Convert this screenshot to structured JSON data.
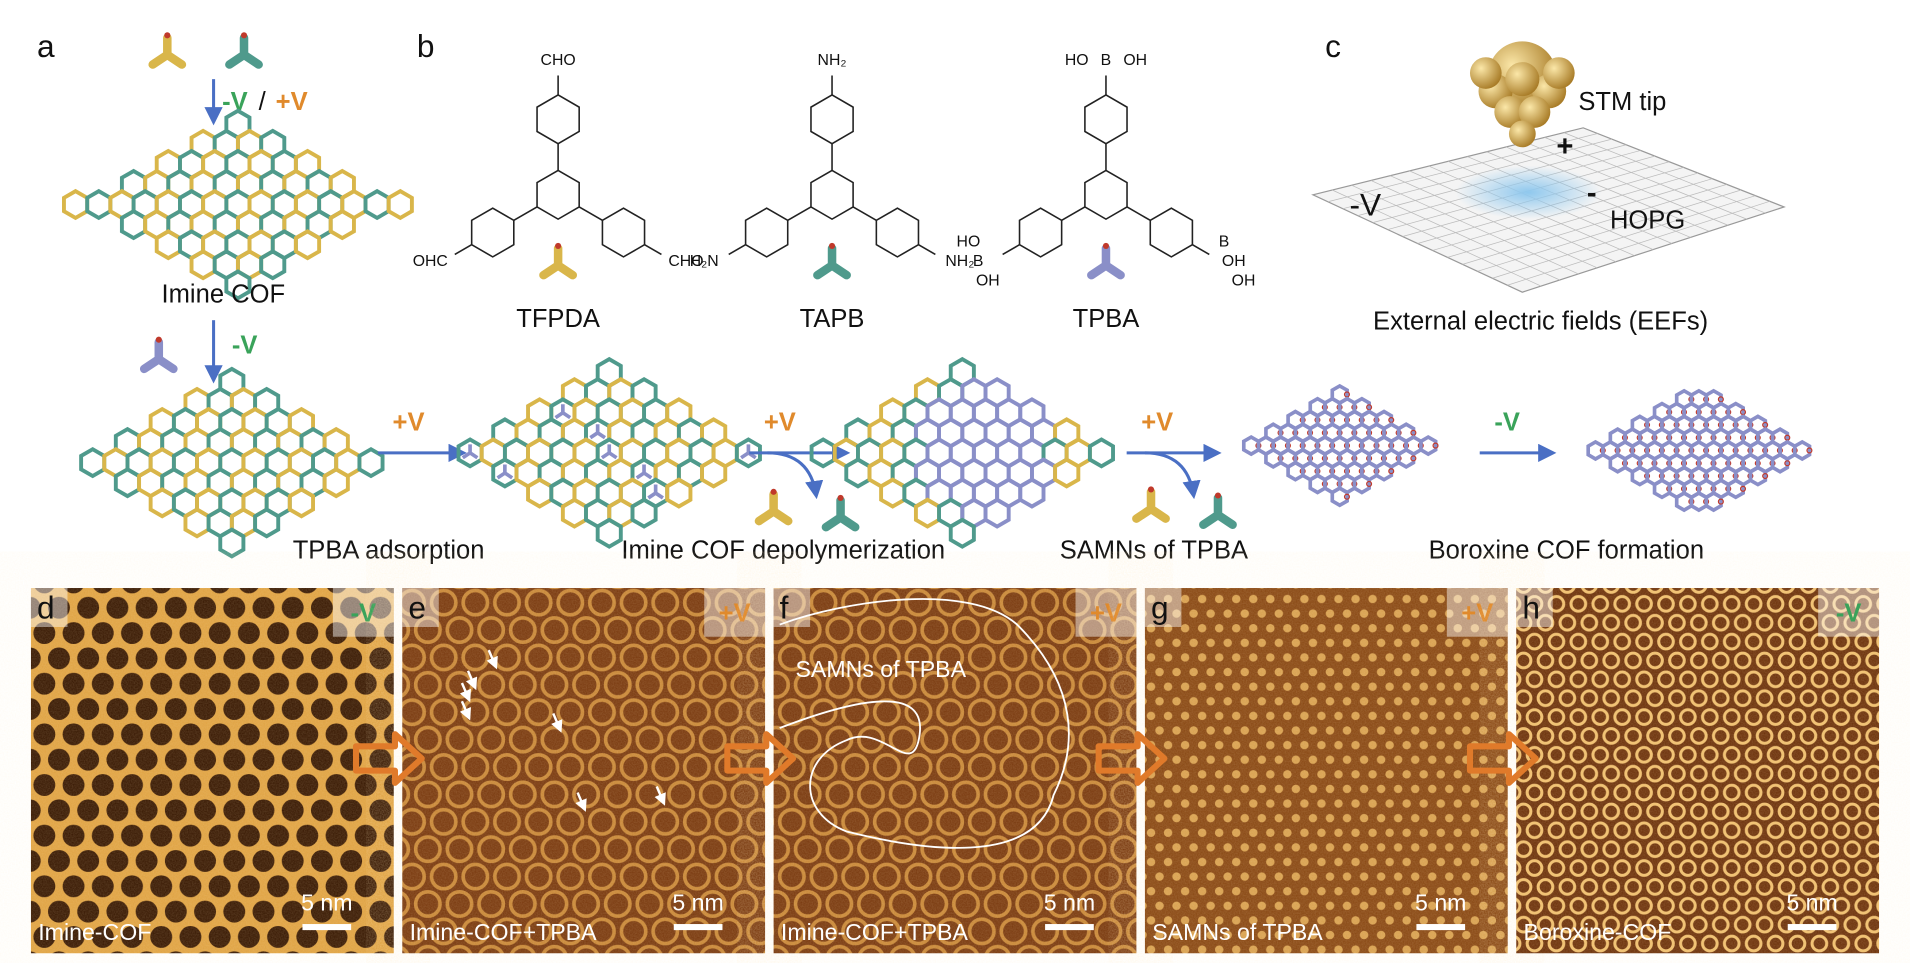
{
  "panel_a": {
    "label": "a",
    "step1_neg": "-V",
    "step1_sep": "/",
    "step1_pos": "+V",
    "product": "Imine COF",
    "step2": "-V"
  },
  "panel_b": {
    "label": "b",
    "molecules": [
      {
        "name": "TFPDA",
        "top": [
          "CHO"
        ],
        "left": [
          "OHC"
        ],
        "right": [
          "CHO"
        ]
      },
      {
        "name": "TAPB",
        "top": [
          "NH₂"
        ],
        "left": [
          "H₂N"
        ],
        "right": [
          "NH₂"
        ]
      },
      {
        "name": "TPBA",
        "top": [
          "HO",
          "B",
          "OH"
        ],
        "left": [
          "HO",
          "B",
          "OH"
        ],
        "right": [
          "B",
          "OH",
          "OH"
        ]
      }
    ]
  },
  "panel_c": {
    "label": "c",
    "tip": "STM tip",
    "tip_charge": "+",
    "surface_bias": "-V",
    "surface_charge": "-",
    "substrate": "HOPG",
    "caption": "External electric fields (EEFs)"
  },
  "scheme": {
    "steps": [
      {
        "bias": "+V",
        "caption": "TPBA adsorption"
      },
      {
        "bias": "+V",
        "caption": "Imine COF depolymerization"
      },
      {
        "bias": "+V",
        "caption": "SAMNs of TPBA"
      },
      {
        "bias": "-V",
        "caption": "Boroxine COF formation"
      }
    ]
  },
  "stm_panels": [
    {
      "label": "d",
      "bias": "-V",
      "caption": "Imine-COF",
      "scale_bar": "5 nm"
    },
    {
      "label": "e",
      "bias": "+V",
      "caption": "Imine-COF+TPBA",
      "scale_bar": "5 nm"
    },
    {
      "label": "f",
      "bias": "+V",
      "caption": "Imine-COF+TPBA",
      "annotation": "SAMNs of TPBA",
      "scale_bar": "5 nm"
    },
    {
      "label": "g",
      "bias": "+V",
      "caption": "SAMNs of TPBA",
      "scale_bar": "5 nm"
    },
    {
      "label": "h",
      "bias": "-V",
      "caption": "Boroxine-COF",
      "scale_bar": "5 nm"
    }
  ]
}
